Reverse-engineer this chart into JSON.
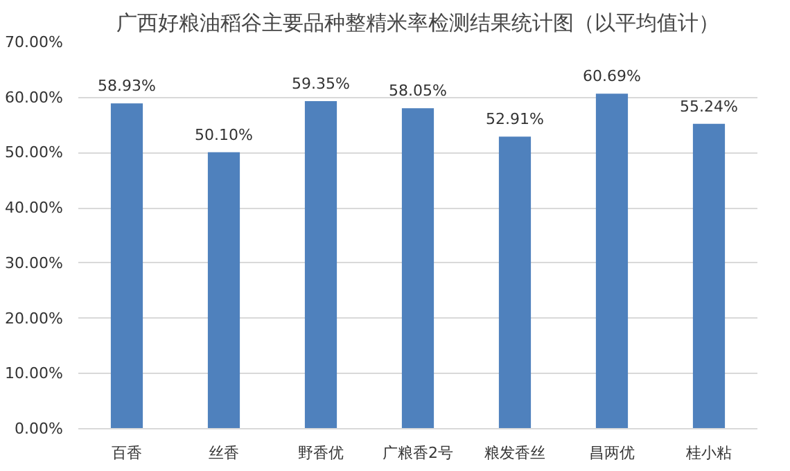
{
  "chart_data": {
    "type": "bar",
    "title": "广西好粮油稻谷主要品种整精米率检测结果统计图（以平均值计）",
    "categories": [
      "百香",
      "丝香",
      "野香优",
      "广粮香2号",
      "粮发香丝",
      "昌两优",
      "桂小粘"
    ],
    "values": [
      58.93,
      50.1,
      59.35,
      58.05,
      52.91,
      60.69,
      55.24
    ],
    "value_labels": [
      "58.93%",
      "50.10%",
      "59.35%",
      "58.05%",
      "52.91%",
      "60.69%",
      "55.24%"
    ],
    "color": "#4f81bd",
    "ylim": [
      0,
      70
    ],
    "yticks": [
      {
        "value": 0,
        "label": "0.00%"
      },
      {
        "value": 10,
        "label": "10.00%"
      },
      {
        "value": 20,
        "label": "20.00%"
      },
      {
        "value": 30,
        "label": "30.00%"
      },
      {
        "value": 40,
        "label": "40.00%"
      },
      {
        "value": 50,
        "label": "50.00%"
      },
      {
        "value": 60,
        "label": "60.00%"
      },
      {
        "value": 70,
        "label": "70.00%"
      }
    ],
    "grid": "y"
  }
}
